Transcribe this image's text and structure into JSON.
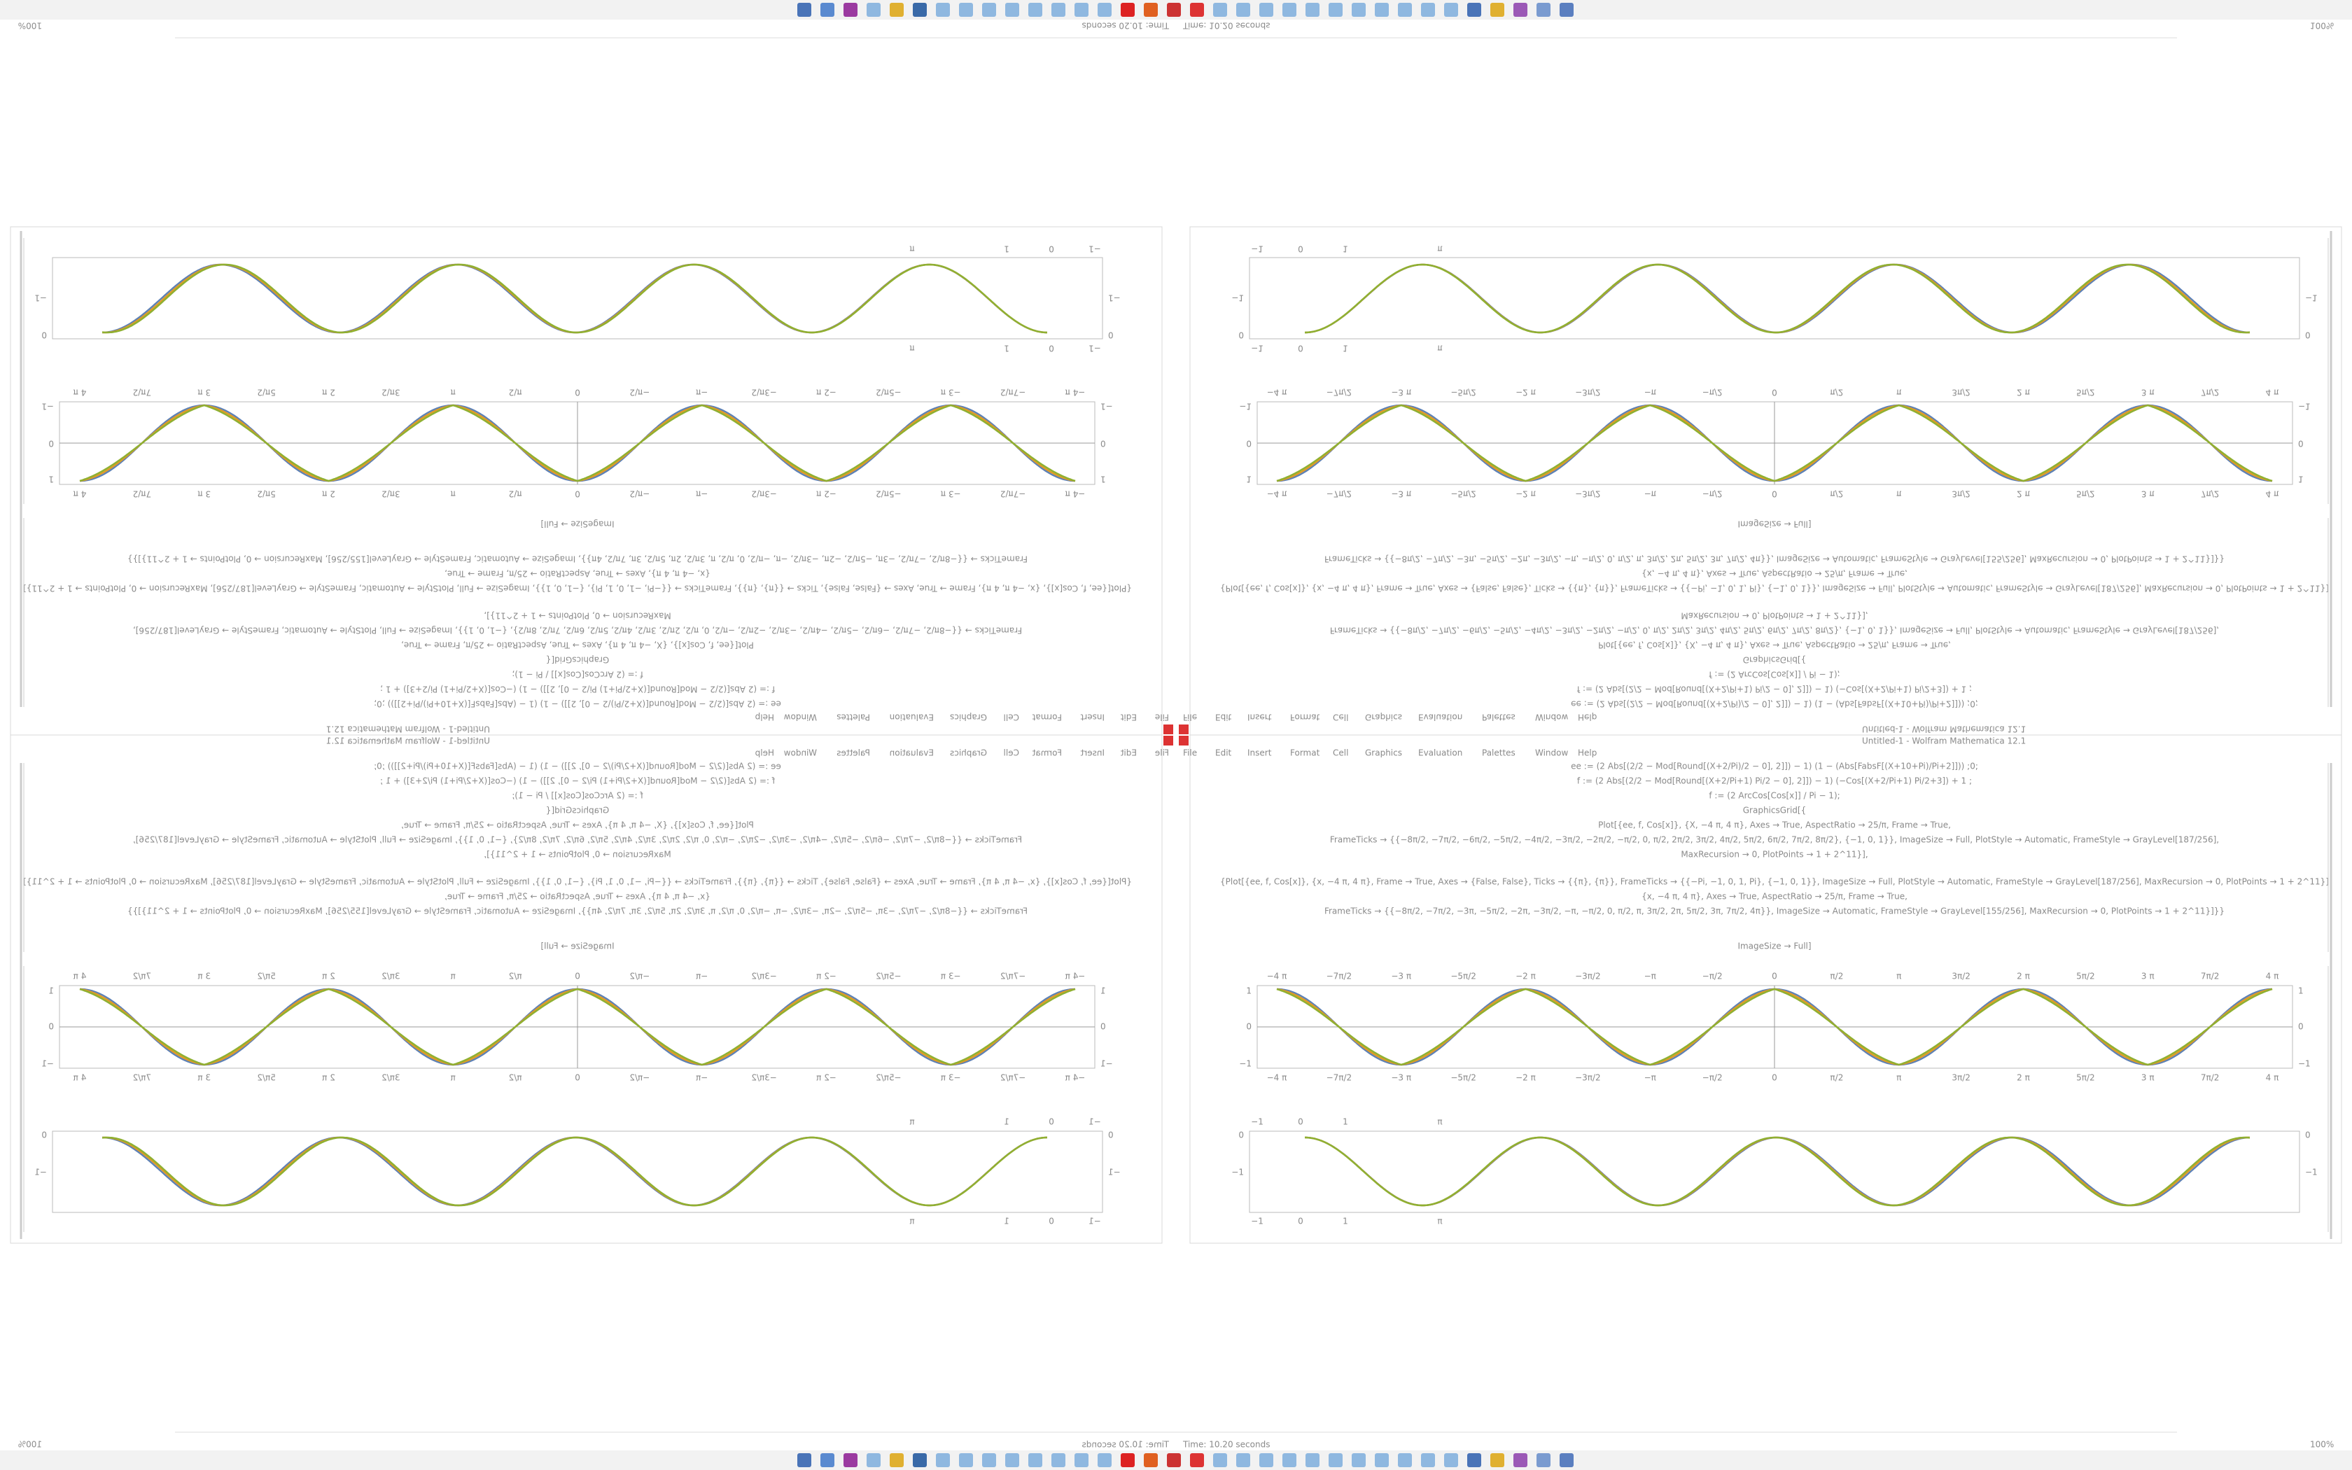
{
  "window": {
    "title": "Untitled-1 - Wolfram Mathematica 12.1",
    "menu": [
      "File",
      "Edit",
      "Insert",
      "Format",
      "Cell",
      "Graphics",
      "Evaluation",
      "Palettes",
      "Window",
      "Help"
    ],
    "status": "Time: 10.20 seconds",
    "zoom": "100%"
  },
  "notebook": {
    "code": [
      "ee := (2 Abs[(2/2 − Mod[Round[(X+2/Pi)/2 − 0], 2]]) − 1) (1 − (Abs[FabsF[(X+10+Pi)/Pi+2]])) ;0;",
      "f := (2 Abs[(2/2 − Mod[Round[(X+2/Pi+1) Pi/2 − 0], 2]]) − 1) (−Cos[(X+2/Pi+1) Pi/2+3]) + 1 ;",
      "f := (2 ArcCos[Cos[x]] / Pi − 1);",
      "GraphicsGrid[{",
      "Plot[{ee, f, Cos[x]}, {X, −4 π, 4 π}, Axes → True, AspectRatio → 25/π, Frame → True,",
      "FrameTicks → {{−8π/2, −7π/2, −6π/2, −5π/2, −4π/2, −3π/2, −2π/2, −π/2, 0, π/2, 2π/2, 3π/2, 4π/2, 5π/2, 6π/2, 7π/2, 8π/2}, {−1, 0, 1}}, ImageSize → Full, PlotStyle → Automatic, FrameStyle → GrayLevel[187/256],",
      "MaxRecursion → 0, PlotPoints → 1 + 2^11}],",
      "{Plot[{ee, f, Cos[x]}, {x, −4 π, 4 π}, Frame → True, Axes → {False, False}, Ticks → {{π}, {π}}, FrameTicks → {{−Pi, −1, 0, 1, Pi}, {−1, 0, 1}}, ImageSize → Full, PlotStyle → Automatic, FrameStyle → GrayLevel[187/256], MaxRecursion → 0, PlotPoints → 1 + 2^11}]",
      "{x, −4 π, 4 π}, Axes → True, AspectRatio → 25/π, Frame → True,",
      "FrameTicks → {{−8π/2, −7π/2, −3π, −5π/2, −2π, −3π/2, −π, −π/2, 0, π/2, π, 3π/2, 2π, 5π/2, 3π, 7π/2, 4π}}, ImageSize → Automatic, FrameStyle → GrayLevel[155/256], MaxRecursion → 0, PlotPoints → 1 + 2^11}]}}"
    ],
    "output": "ImageSize → Full]"
  },
  "plots": [
    {
      "x_ticks": [
        "−4 π",
        "−7π/2",
        "−3 π",
        "−5π/2",
        "−2 π",
        "−3π/2",
        "−π",
        "−π/2",
        "0",
        "π/2",
        "π",
        "3π/2",
        "2 π",
        "5π/2",
        "3 π",
        "7π/2",
        "4 π"
      ],
      "y_ticks": [
        "1",
        "0",
        "−1"
      ]
    },
    {
      "x_ticks": [
        "−1",
        "0",
        "1",
        "π"
      ],
      "y_ticks": [
        "0",
        "−1"
      ]
    }
  ]
}
